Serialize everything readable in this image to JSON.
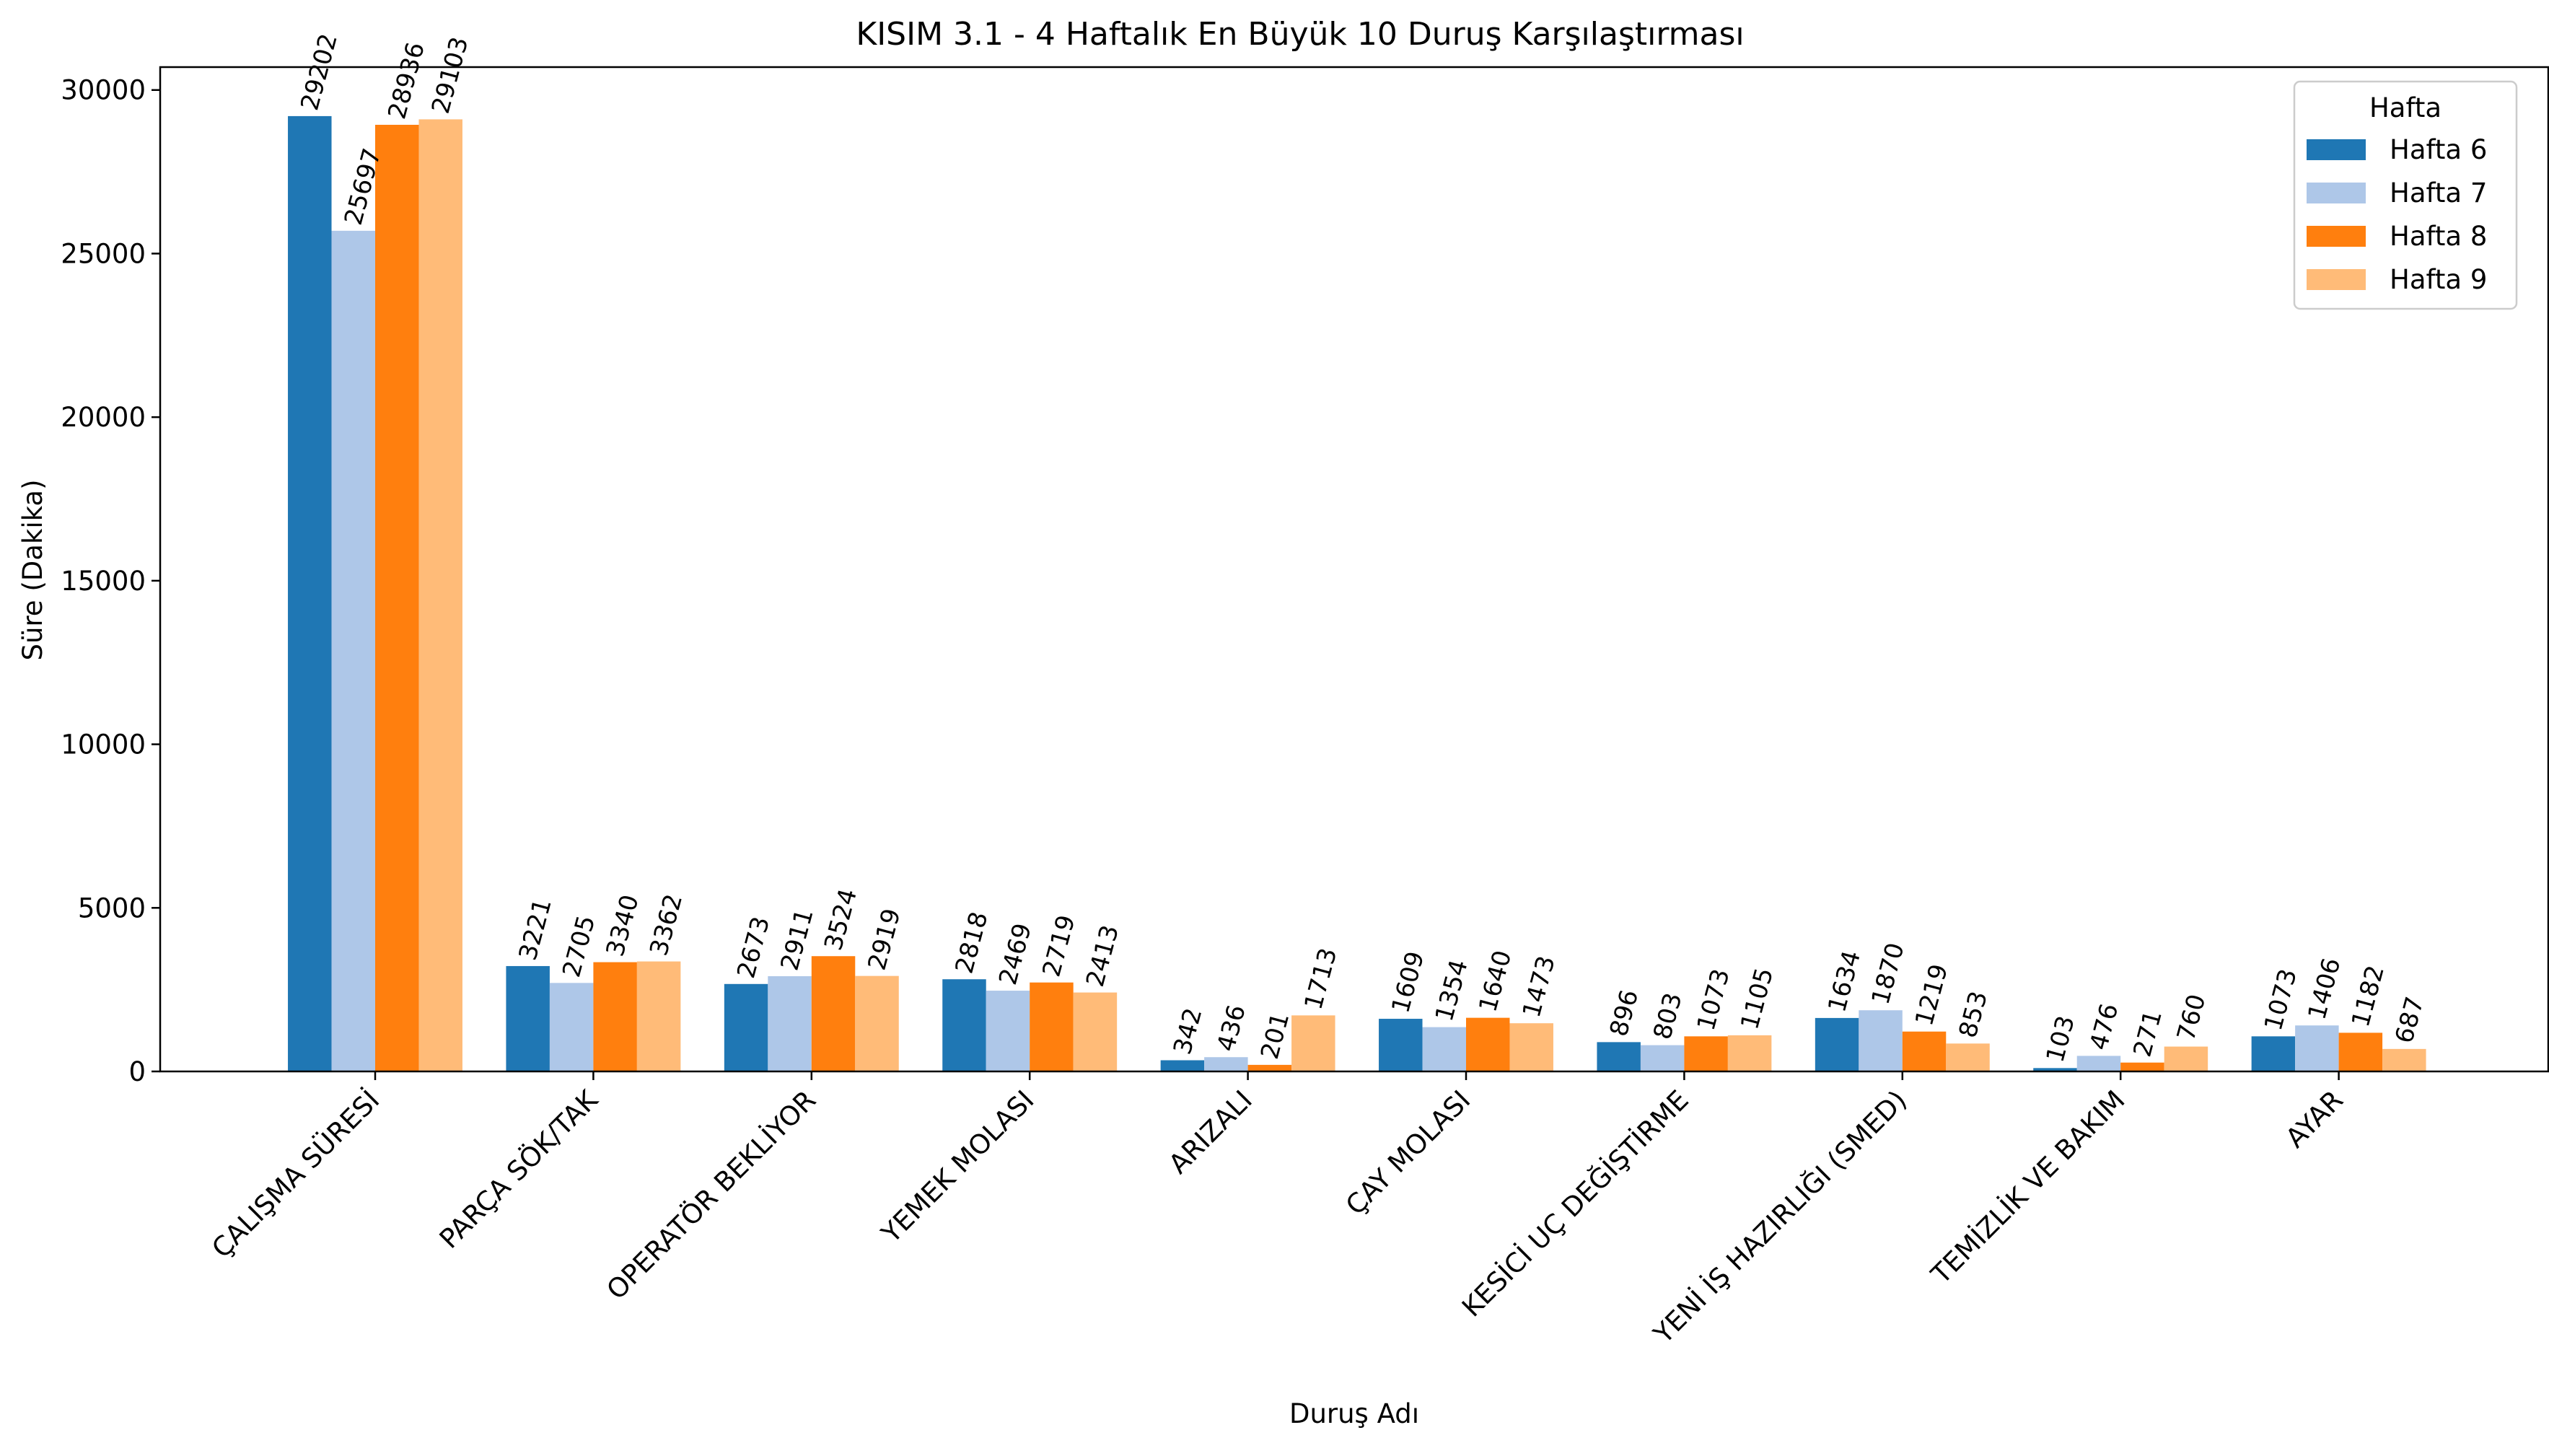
{
  "chart_data": {
    "type": "bar",
    "title": "KISIM 3.1 - 4 Haftalık En Büyük 10 Duruş Karşılaştırması",
    "xlabel": "Duruş Adı",
    "ylabel": "Süre (Dakika)",
    "ylim": [
      0,
      30700
    ],
    "yticks": [
      0,
      5000,
      10000,
      15000,
      20000,
      25000,
      30000
    ],
    "grid": false,
    "legend": {
      "title": "Hafta",
      "placement": "top-right"
    },
    "categories": [
      "ÇALIŞMA SÜRESİ",
      "PARÇA SÖK/TAK",
      "OPERATÖR BEKLİYOR",
      "YEMEK MOLASI",
      "ARIZALI",
      "ÇAY MOLASI",
      "KESİCİ UÇ DEĞİŞTİRME",
      "YENİ İŞ HAZIRLIĞI (SMED)",
      "TEMİZLİK VE BAKIM",
      "AYAR"
    ],
    "series": [
      {
        "name": "Hafta 6",
        "color": "#1f77b4",
        "values": [
          29202,
          3221,
          2673,
          2818,
          342,
          1609,
          896,
          1634,
          103,
          1073
        ]
      },
      {
        "name": "Hafta 7",
        "color": "#aec7e8",
        "values": [
          25697,
          2705,
          2911,
          2469,
          436,
          1354,
          803,
          1870,
          476,
          1406
        ]
      },
      {
        "name": "Hafta 8",
        "color": "#ff7f0e",
        "values": [
          28936,
          3340,
          3524,
          2719,
          201,
          1640,
          1073,
          1219,
          271,
          1182
        ]
      },
      {
        "name": "Hafta 9",
        "color": "#ffbb78",
        "values": [
          29103,
          3362,
          2919,
          2413,
          1713,
          1473,
          1105,
          853,
          760,
          687
        ]
      }
    ]
  }
}
